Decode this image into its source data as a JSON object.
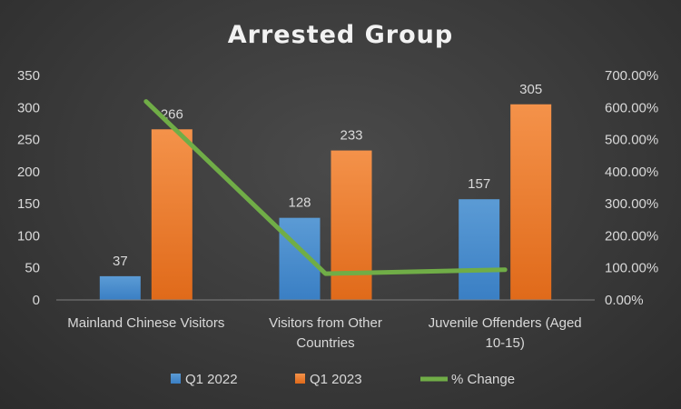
{
  "chart_data": {
    "type": "bar",
    "title": "Arrested Group",
    "categories": [
      [
        "Mainland Chinese Visitors"
      ],
      [
        "Visitors from Other",
        "Countries"
      ],
      [
        "Juvenile Offenders (Aged",
        "10-15)"
      ]
    ],
    "series": [
      {
        "name": "Q1 2022",
        "type": "bar",
        "axis": "left",
        "values": [
          37,
          128,
          157
        ],
        "color": "#5b9bd5",
        "color_dark": "#3a7fc4"
      },
      {
        "name": "Q1 2023",
        "type": "bar",
        "axis": "left",
        "values": [
          266,
          233,
          305
        ],
        "color": "#f4924a",
        "color_dark": "#e06a1a"
      },
      {
        "name": "% Change",
        "type": "line",
        "axis": "right",
        "values": [
          618.9,
          82.0,
          94.3
        ],
        "color": "#70ad47"
      }
    ],
    "y_left": {
      "min": 0,
      "max": 350,
      "step": 50,
      "ticks": [
        "0",
        "50",
        "100",
        "150",
        "200",
        "250",
        "300",
        "350"
      ]
    },
    "y_right": {
      "min": 0,
      "max": 700,
      "step": 100,
      "ticks": [
        "0.00%",
        "100.00%",
        "200.00%",
        "300.00%",
        "400.00%",
        "500.00%",
        "600.00%",
        "700.00%"
      ]
    },
    "data_labels": [
      [
        "37",
        "128",
        "157"
      ],
      [
        "266",
        "233",
        "305"
      ]
    ],
    "legend": {
      "position": "bottom"
    },
    "grid": false
  }
}
